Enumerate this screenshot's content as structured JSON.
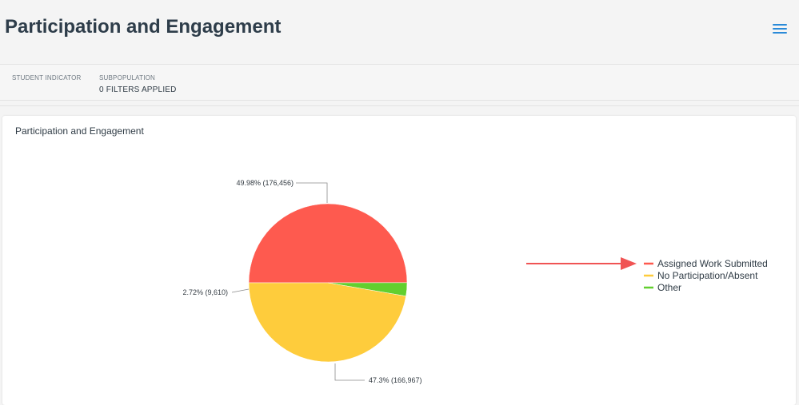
{
  "header": {
    "title": "Participation and Engagement",
    "menu_icon": "hamburger-menu-icon"
  },
  "filters": {
    "student_indicator_label": "STUDENT INDICATOR",
    "subpopulation_label": "SUBPOPULATION",
    "subpopulation_value": "0 FILTERS APPLIED"
  },
  "card": {
    "title": "Participation and Engagement"
  },
  "colors": {
    "assigned": "#fe5a4f",
    "absent": "#fecc3c",
    "other": "#62cf2f",
    "arrow": "#f05454"
  },
  "chart_data": {
    "type": "pie",
    "title": "Participation and Engagement",
    "legend_position": "right",
    "slices": [
      {
        "name": "Assigned Work Submitted",
        "percent": 49.98,
        "count": 176456,
        "label": "49.98% (176,456)",
        "color": "#fe5a4f"
      },
      {
        "name": "Other",
        "percent": 2.72,
        "count": 9610,
        "label": "2.72% (9,610)",
        "color": "#62cf2f"
      },
      {
        "name": "No Participation/Absent",
        "percent": 47.3,
        "count": 166967,
        "label": "47.3% (166,967)",
        "color": "#fecc3c"
      }
    ],
    "legend": [
      {
        "name": "Assigned Work Submitted",
        "color": "#fe5a4f"
      },
      {
        "name": "No Participation/Absent",
        "color": "#fecc3c"
      },
      {
        "name": "Other",
        "color": "#62cf2f"
      }
    ]
  }
}
